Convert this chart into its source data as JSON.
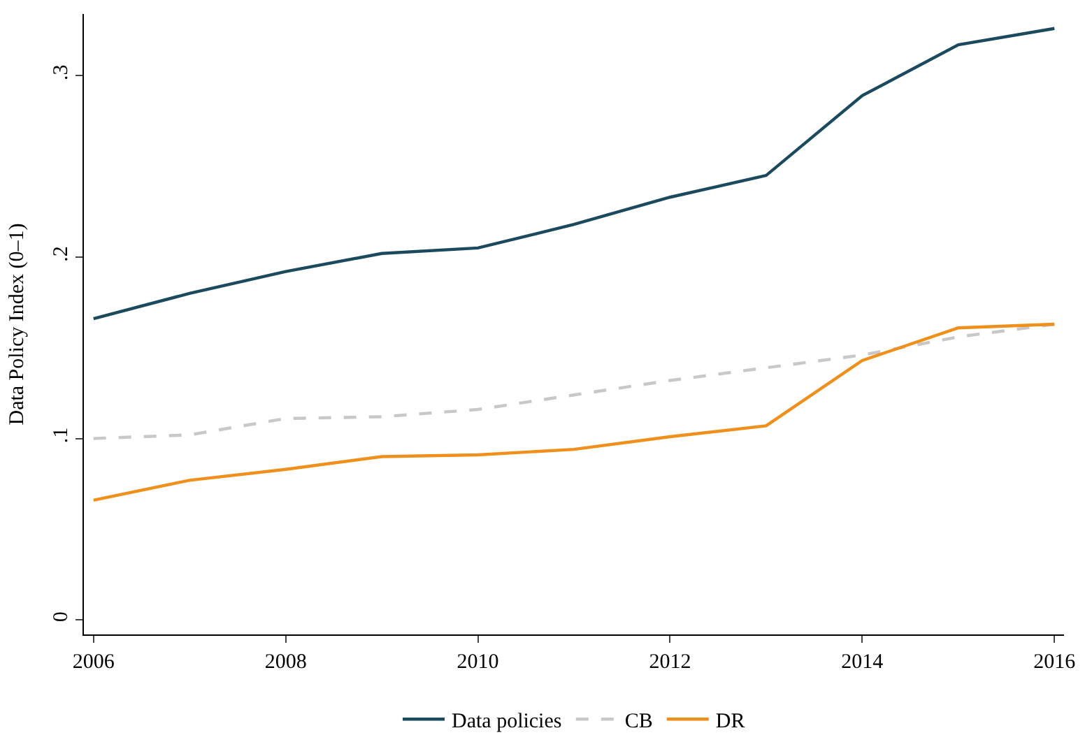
{
  "chart_data": {
    "type": "line",
    "ylabel": "Data Policy Index (0–1)",
    "x": [
      2006,
      2007,
      2008,
      2009,
      2010,
      2011,
      2012,
      2013,
      2014,
      2015,
      2016
    ],
    "series": [
      {
        "name": "Data policies",
        "color": "#1b4a5e",
        "values": [
          0.166,
          0.18,
          0.192,
          0.202,
          0.205,
          0.218,
          0.233,
          0.245,
          0.289,
          0.317,
          0.326
        ]
      },
      {
        "name": "CB",
        "color": "#c8c8c8",
        "line_style": "dashed",
        "values": [
          0.1,
          0.102,
          0.111,
          0.112,
          0.116,
          0.124,
          0.132,
          0.139,
          0.146,
          0.156,
          0.163
        ]
      },
      {
        "name": "DR",
        "color": "#f0901c",
        "values": [
          0.066,
          0.077,
          0.083,
          0.09,
          0.091,
          0.094,
          0.101,
          0.107,
          0.143,
          0.161,
          0.163
        ]
      }
    ],
    "xlim": [
      2005.9,
      2016.1
    ],
    "xticks": [
      2006,
      2008,
      2010,
      2012,
      2014,
      2016
    ],
    "ylim": [
      -0.008,
      0.334
    ],
    "yticks": [
      {
        "value": 0,
        "label": "0"
      },
      {
        "value": 0.1,
        "label": ".1"
      },
      {
        "value": 0.2,
        "label": ".2"
      },
      {
        "value": 0.3,
        "label": ".3"
      }
    ],
    "legend": "bottom",
    "marker": "none",
    "line_style": "solid"
  }
}
